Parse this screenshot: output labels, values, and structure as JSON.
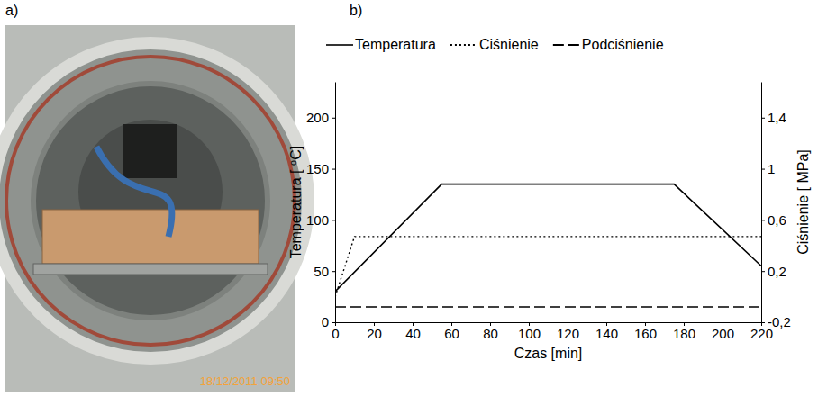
{
  "figure": {
    "panel_a": {
      "label": "a)",
      "photo_stamp": "18/12/2011 09:50"
    },
    "panel_b": {
      "label": "b)"
    }
  },
  "chart_data": {
    "type": "line",
    "x_label": "Czas [min]",
    "y_label": "Temperatura [ ⁰C]",
    "y2_label": "Ciśnienie [ MPa]",
    "xlim": [
      0,
      220
    ],
    "xticks": [
      0,
      20,
      40,
      60,
      80,
      100,
      120,
      140,
      160,
      180,
      200,
      220
    ],
    "ylim": [
      0,
      235
    ],
    "yticks": [
      0,
      50,
      100,
      150,
      200
    ],
    "y2lim": [
      -0.2,
      1.68
    ],
    "y2ticks": [
      {
        "value": -0.2,
        "label": "-0,2"
      },
      {
        "value": 0.2,
        "label": "0,2"
      },
      {
        "value": 0.6,
        "label": "0,6"
      },
      1,
      {
        "value": 1.4,
        "label": "1,4"
      }
    ],
    "grid": false,
    "legend": "top",
    "series": [
      {
        "name": "Temperatura",
        "color": "#000000",
        "line_style": "solid",
        "x": [
          0,
          55,
          175,
          220
        ],
        "values": [
          30,
          135,
          135,
          55
        ]
      },
      {
        "name": "Ciśnienie",
        "color": "#000000",
        "line_style": "dotted",
        "axis": "y2",
        "x": [
          0,
          10,
          220
        ],
        "values": [
          0,
          0.47,
          0.47
        ]
      },
      {
        "name": "Podciśnienie",
        "color": "#000000",
        "line_style": "dashed",
        "axis": "y2",
        "x": [
          0,
          220
        ],
        "values": [
          -0.08,
          -0.08
        ]
      }
    ]
  }
}
